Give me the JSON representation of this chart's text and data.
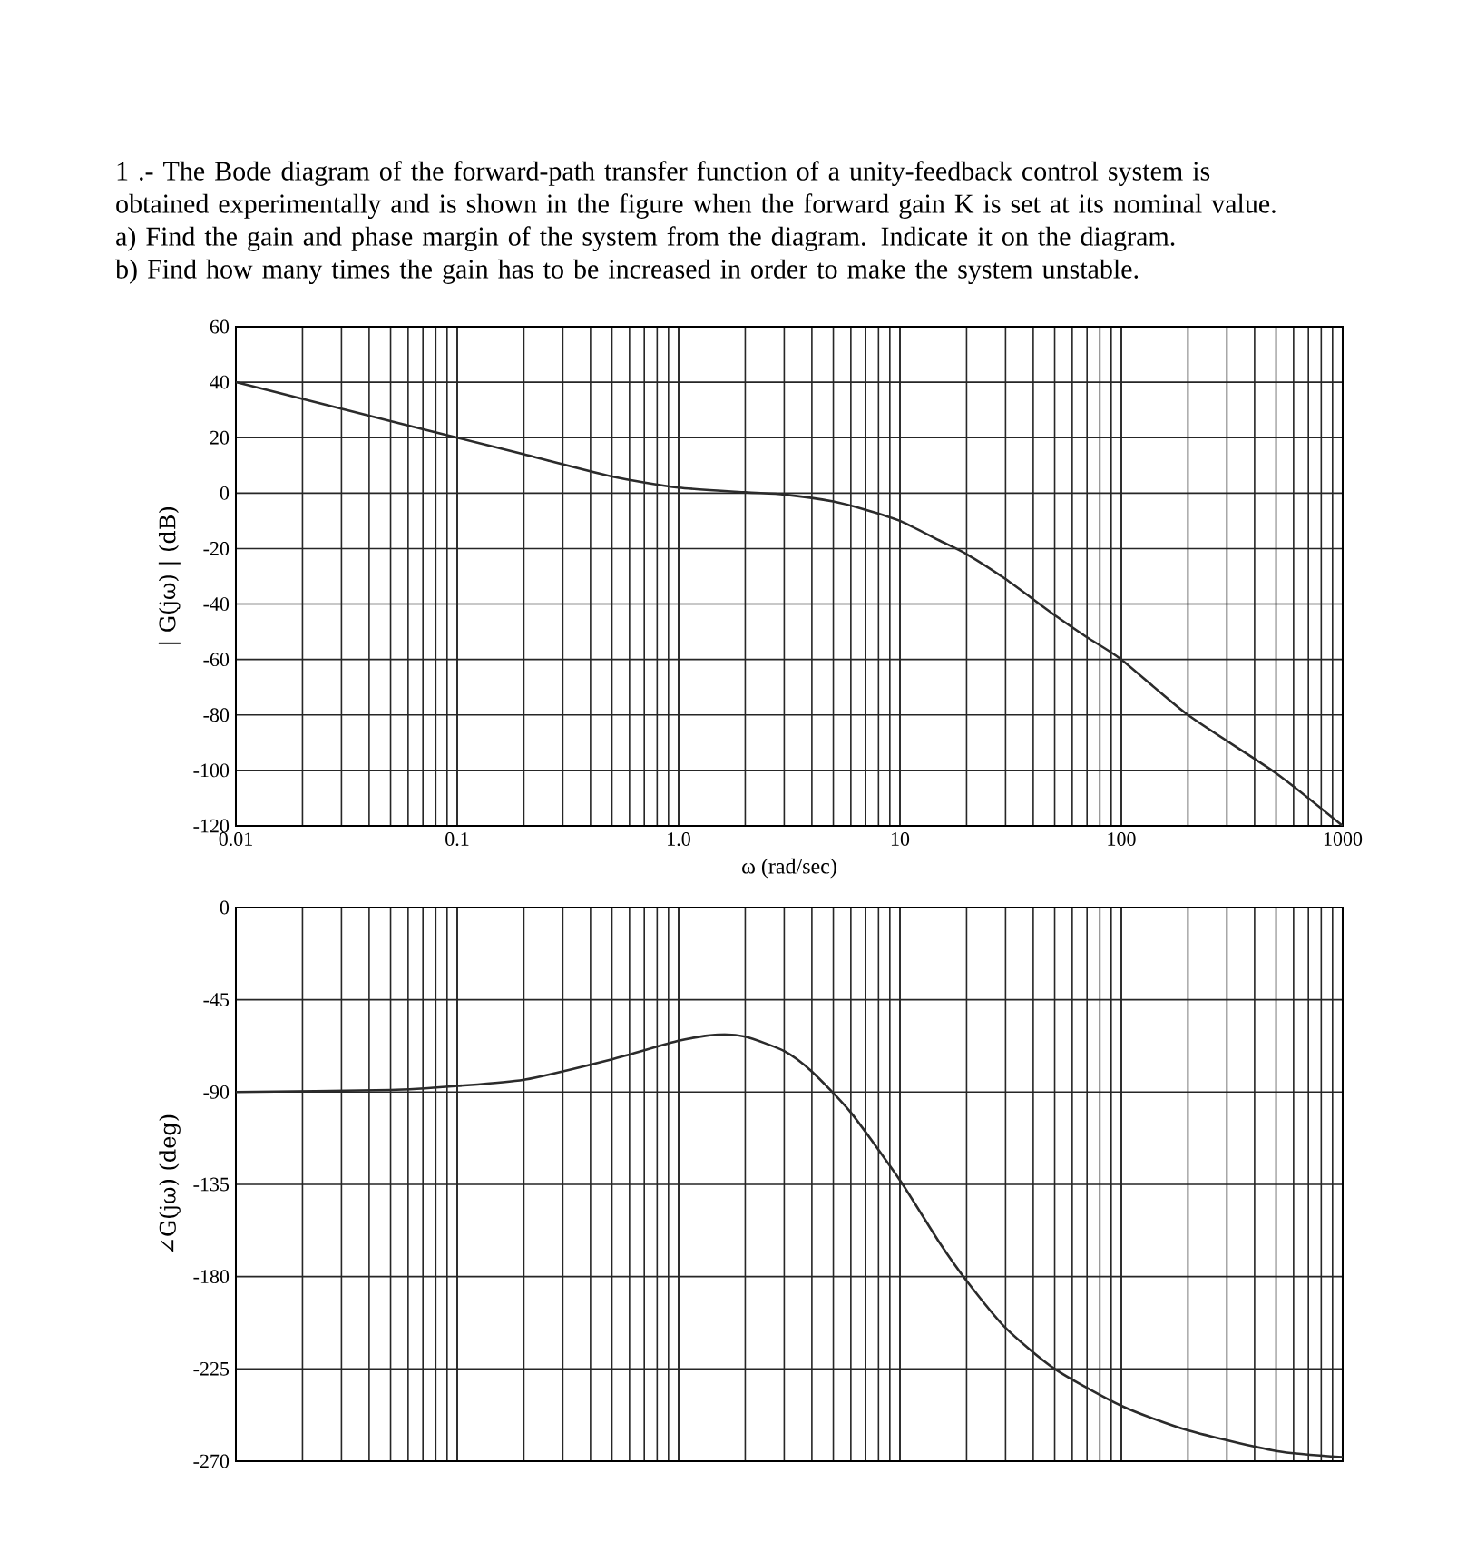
{
  "chart_data": [
    {
      "type": "line",
      "title": "1 .- The Bode diagram of the forward-path transfer function of a unity-feedback control system is obtained experimentally and is shown in the figure when the forward gain K is set at its nominal value.",
      "annotations": [
        "a) Find the gain and phase margin of the system from the diagram. Indicate it on the diagram.",
        "b) Find how many times the gain has to be increased in order to make the system unstable."
      ],
      "xlabel": "ω (rad/sec)",
      "ylabel": "| G(jω) | (dB)",
      "log": "x",
      "grid": true,
      "x": [
        0.01,
        0.02,
        0.05,
        0.1,
        0.2,
        0.5,
        1,
        2,
        3,
        5,
        7,
        10,
        15,
        20,
        30,
        50,
        70,
        100,
        200,
        500,
        1000
      ],
      "series": [
        {
          "color": "#2b2b2b",
          "values": [
            40,
            34,
            26,
            20,
            14,
            6,
            2,
            0.3,
            -0.5,
            -3,
            -6,
            -10,
            -17,
            -22,
            -31,
            -44,
            -52,
            -60,
            -80,
            -101,
            -120
          ]
        }
      ],
      "xlim": [
        0.01,
        1000
      ],
      "ylim": [
        -120,
        60
      ],
      "xticks": [
        0.01,
        0.1,
        {
          "value": 1,
          "label": "1.0"
        },
        10,
        100,
        1000
      ],
      "yticks": [
        -120,
        -100,
        -80,
        -60,
        -40,
        -20,
        0,
        20,
        40,
        60
      ]
    },
    {
      "type": "line",
      "ylabel": "∠G(jω) (deg)",
      "log": "x",
      "grid": true,
      "tick_labels": "y",
      "x": [
        0.01,
        0.05,
        0.1,
        0.2,
        0.5,
        1,
        1.5,
        2,
        3,
        4,
        6,
        10,
        15,
        20,
        30,
        50,
        100,
        200,
        500,
        1000
      ],
      "series": [
        {
          "color": "#2b2b2b",
          "values": [
            -90,
            -89,
            -87,
            -84,
            -74,
            -65,
            -62,
            -63,
            -70,
            -80,
            -100,
            -133,
            -163,
            -182,
            -205,
            -225,
            -243,
            -255,
            -265,
            -268
          ]
        }
      ],
      "xlim": [
        0.01,
        1000
      ],
      "ylim": [
        -270,
        0
      ],
      "xticks": [
        0.01,
        0.1,
        1,
        10,
        100,
        1000
      ],
      "yticks": [
        -270,
        -225,
        -180,
        -135,
        -90,
        -45,
        0
      ]
    }
  ]
}
